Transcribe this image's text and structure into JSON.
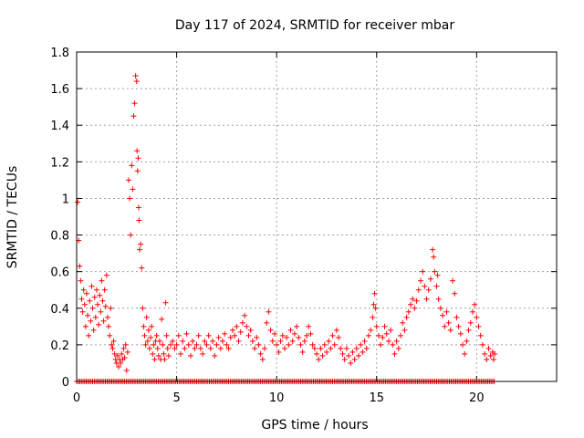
{
  "chart_data": {
    "type": "scatter",
    "title": "Day 117 of 2024, SRMTID for receiver mbar",
    "xlabel": "GPS time / hours",
    "ylabel": "SRMTID / TECUs",
    "xlim": [
      0,
      24
    ],
    "ylim": [
      0,
      1.8
    ],
    "xticks": [
      0,
      5,
      10,
      15,
      20
    ],
    "xtick_labels": [
      "0",
      "5",
      "10",
      "15",
      "20"
    ],
    "yticks": [
      0,
      0.2,
      0.4,
      0.6,
      0.8,
      1.0,
      1.2,
      1.4,
      1.6,
      1.8
    ],
    "ytick_labels": [
      "0",
      "0.2",
      "0.4",
      "0.6",
      "0.8",
      "1",
      "1.2",
      "1.4",
      "1.6",
      "1.8"
    ],
    "grid": true,
    "marker": "+",
    "series": [
      {
        "name": "SRMTID",
        "color": "#ff0000",
        "points": [
          [
            0.05,
            0.98
          ],
          [
            0.1,
            0.77
          ],
          [
            0.15,
            0.63
          ],
          [
            0.2,
            0.55
          ],
          [
            0.25,
            0.45
          ],
          [
            0.3,
            0.38
          ],
          [
            0.35,
            0.5
          ],
          [
            0.4,
            0.42
          ],
          [
            0.45,
            0.3
          ],
          [
            0.5,
            0.48
          ],
          [
            0.55,
            0.36
          ],
          [
            0.6,
            0.25
          ],
          [
            0.65,
            0.44
          ],
          [
            0.7,
            0.33
          ],
          [
            0.75,
            0.52
          ],
          [
            0.8,
            0.4
          ],
          [
            0.85,
            0.28
          ],
          [
            0.9,
            0.46
          ],
          [
            0.95,
            0.35
          ],
          [
            1.0,
            0.5
          ],
          [
            1.05,
            0.42
          ],
          [
            1.1,
            0.31
          ],
          [
            1.15,
            0.47
          ],
          [
            1.2,
            0.38
          ],
          [
            1.25,
            0.55
          ],
          [
            1.3,
            0.44
          ],
          [
            1.35,
            0.33
          ],
          [
            1.4,
            0.5
          ],
          [
            1.45,
            0.41
          ],
          [
            1.5,
            0.58
          ],
          [
            1.55,
            0.35
          ],
          [
            1.6,
            0.3
          ],
          [
            1.65,
            0.25
          ],
          [
            1.7,
            0.4
          ],
          [
            1.75,
            0.2
          ],
          [
            1.8,
            0.18
          ],
          [
            1.85,
            0.22
          ],
          [
            1.9,
            0.15
          ],
          [
            1.95,
            0.12
          ],
          [
            2.0,
            0.1
          ],
          [
            2.05,
            0.14
          ],
          [
            2.1,
            0.08
          ],
          [
            2.15,
            0.12
          ],
          [
            2.2,
            0.1
          ],
          [
            2.25,
            0.15
          ],
          [
            2.3,
            0.12
          ],
          [
            2.35,
            0.18
          ],
          [
            2.4,
            0.13
          ],
          [
            2.45,
            0.2
          ],
          [
            2.5,
            0.06
          ],
          [
            2.55,
            0.16
          ],
          [
            2.6,
            1.1
          ],
          [
            2.65,
            1.0
          ],
          [
            2.7,
            0.8
          ],
          [
            2.75,
            1.18
          ],
          [
            2.8,
            1.05
          ],
          [
            2.85,
            1.45
          ],
          [
            2.9,
            1.52
          ],
          [
            2.95,
            1.67
          ],
          [
            3.0,
            1.64
          ],
          [
            3.02,
            1.26
          ],
          [
            3.05,
            1.15
          ],
          [
            3.08,
            1.22
          ],
          [
            3.1,
            0.95
          ],
          [
            3.12,
            0.88
          ],
          [
            3.15,
            0.72
          ],
          [
            3.2,
            0.75
          ],
          [
            3.25,
            0.62
          ],
          [
            3.3,
            0.4
          ],
          [
            3.35,
            0.3
          ],
          [
            3.4,
            0.25
          ],
          [
            3.45,
            0.2
          ],
          [
            3.5,
            0.35
          ],
          [
            3.55,
            0.22
          ],
          [
            3.6,
            0.28
          ],
          [
            3.65,
            0.18
          ],
          [
            3.7,
            0.24
          ],
          [
            3.75,
            0.3
          ],
          [
            3.8,
            0.15
          ],
          [
            3.85,
            0.2
          ],
          [
            3.9,
            0.12
          ],
          [
            3.95,
            0.22
          ],
          [
            4.0,
            0.25
          ],
          [
            4.05,
            0.18
          ],
          [
            4.1,
            0.14
          ],
          [
            4.15,
            0.22
          ],
          [
            4.2,
            0.12
          ],
          [
            4.25,
            0.34
          ],
          [
            4.3,
            0.2
          ],
          [
            4.35,
            0.15
          ],
          [
            4.4,
            0.12
          ],
          [
            4.45,
            0.43
          ],
          [
            4.5,
            0.25
          ],
          [
            4.55,
            0.18
          ],
          [
            4.6,
            0.14
          ],
          [
            4.7,
            0.2
          ],
          [
            4.8,
            0.22
          ],
          [
            4.9,
            0.18
          ],
          [
            5.0,
            0.2
          ],
          [
            5.1,
            0.25
          ],
          [
            5.2,
            0.15
          ],
          [
            5.3,
            0.22
          ],
          [
            5.4,
            0.18
          ],
          [
            5.5,
            0.26
          ],
          [
            5.6,
            0.2
          ],
          [
            5.7,
            0.14
          ],
          [
            5.8,
            0.22
          ],
          [
            5.9,
            0.18
          ],
          [
            6.0,
            0.2
          ],
          [
            6.1,
            0.25
          ],
          [
            6.2,
            0.18
          ],
          [
            6.3,
            0.15
          ],
          [
            6.4,
            0.22
          ],
          [
            6.5,
            0.2
          ],
          [
            6.6,
            0.25
          ],
          [
            6.7,
            0.18
          ],
          [
            6.8,
            0.22
          ],
          [
            6.9,
            0.14
          ],
          [
            7.0,
            0.2
          ],
          [
            7.1,
            0.24
          ],
          [
            7.2,
            0.18
          ],
          [
            7.3,
            0.22
          ],
          [
            7.4,
            0.26
          ],
          [
            7.5,
            0.2
          ],
          [
            7.6,
            0.18
          ],
          [
            7.7,
            0.24
          ],
          [
            7.8,
            0.28
          ],
          [
            7.9,
            0.25
          ],
          [
            8.0,
            0.3
          ],
          [
            8.1,
            0.22
          ],
          [
            8.2,
            0.27
          ],
          [
            8.3,
            0.32
          ],
          [
            8.4,
            0.36
          ],
          [
            8.5,
            0.3
          ],
          [
            8.6,
            0.25
          ],
          [
            8.7,
            0.28
          ],
          [
            8.8,
            0.22
          ],
          [
            8.9,
            0.18
          ],
          [
            9.0,
            0.24
          ],
          [
            9.1,
            0.2
          ],
          [
            9.2,
            0.15
          ],
          [
            9.3,
            0.12
          ],
          [
            9.4,
            0.18
          ],
          [
            9.5,
            0.32
          ],
          [
            9.6,
            0.38
          ],
          [
            9.7,
            0.28
          ],
          [
            9.8,
            0.22
          ],
          [
            9.9,
            0.26
          ],
          [
            10.0,
            0.2
          ],
          [
            10.1,
            0.16
          ],
          [
            10.2,
            0.22
          ],
          [
            10.3,
            0.25
          ],
          [
            10.4,
            0.18
          ],
          [
            10.5,
            0.24
          ],
          [
            10.6,
            0.2
          ],
          [
            10.7,
            0.28
          ],
          [
            10.8,
            0.22
          ],
          [
            10.9,
            0.26
          ],
          [
            11.0,
            0.3
          ],
          [
            11.1,
            0.24
          ],
          [
            11.2,
            0.2
          ],
          [
            11.3,
            0.16
          ],
          [
            11.4,
            0.22
          ],
          [
            11.5,
            0.25
          ],
          [
            11.6,
            0.3
          ],
          [
            11.7,
            0.26
          ],
          [
            11.8,
            0.2
          ],
          [
            11.9,
            0.18
          ],
          [
            12.0,
            0.15
          ],
          [
            12.1,
            0.12
          ],
          [
            12.2,
            0.18
          ],
          [
            12.3,
            0.14
          ],
          [
            12.4,
            0.2
          ],
          [
            12.5,
            0.16
          ],
          [
            12.6,
            0.22
          ],
          [
            12.7,
            0.18
          ],
          [
            12.8,
            0.25
          ],
          [
            12.9,
            0.2
          ],
          [
            13.0,
            0.28
          ],
          [
            13.1,
            0.24
          ],
          [
            13.2,
            0.18
          ],
          [
            13.3,
            0.15
          ],
          [
            13.4,
            0.12
          ],
          [
            13.5,
            0.18
          ],
          [
            13.6,
            0.14
          ],
          [
            13.7,
            0.1
          ],
          [
            13.8,
            0.16
          ],
          [
            13.9,
            0.12
          ],
          [
            14.0,
            0.18
          ],
          [
            14.1,
            0.14
          ],
          [
            14.2,
            0.2
          ],
          [
            14.3,
            0.16
          ],
          [
            14.4,
            0.22
          ],
          [
            14.5,
            0.18
          ],
          [
            14.6,
            0.25
          ],
          [
            14.7,
            0.28
          ],
          [
            14.8,
            0.35
          ],
          [
            14.85,
            0.42
          ],
          [
            14.9,
            0.48
          ],
          [
            14.95,
            0.4
          ],
          [
            15.0,
            0.3
          ],
          [
            15.1,
            0.25
          ],
          [
            15.2,
            0.2
          ],
          [
            15.3,
            0.24
          ],
          [
            15.4,
            0.3
          ],
          [
            15.5,
            0.26
          ],
          [
            15.6,
            0.22
          ],
          [
            15.7,
            0.28
          ],
          [
            15.8,
            0.2
          ],
          [
            15.9,
            0.15
          ],
          [
            16.0,
            0.22
          ],
          [
            16.1,
            0.18
          ],
          [
            16.2,
            0.25
          ],
          [
            16.3,
            0.32
          ],
          [
            16.4,
            0.28
          ],
          [
            16.5,
            0.35
          ],
          [
            16.6,
            0.38
          ],
          [
            16.7,
            0.42
          ],
          [
            16.8,
            0.45
          ],
          [
            16.9,
            0.4
          ],
          [
            17.0,
            0.44
          ],
          [
            17.1,
            0.5
          ],
          [
            17.2,
            0.55
          ],
          [
            17.3,
            0.6
          ],
          [
            17.4,
            0.52
          ],
          [
            17.5,
            0.45
          ],
          [
            17.6,
            0.5
          ],
          [
            17.7,
            0.56
          ],
          [
            17.8,
            0.72
          ],
          [
            17.85,
            0.68
          ],
          [
            17.9,
            0.6
          ],
          [
            18.0,
            0.52
          ],
          [
            18.05,
            0.58
          ],
          [
            18.1,
            0.45
          ],
          [
            18.2,
            0.4
          ],
          [
            18.3,
            0.36
          ],
          [
            18.4,
            0.3
          ],
          [
            18.5,
            0.38
          ],
          [
            18.6,
            0.32
          ],
          [
            18.7,
            0.28
          ],
          [
            18.8,
            0.55
          ],
          [
            18.9,
            0.48
          ],
          [
            19.0,
            0.35
          ],
          [
            19.1,
            0.3
          ],
          [
            19.2,
            0.26
          ],
          [
            19.3,
            0.2
          ],
          [
            19.4,
            0.15
          ],
          [
            19.5,
            0.22
          ],
          [
            19.6,
            0.28
          ],
          [
            19.7,
            0.32
          ],
          [
            19.8,
            0.38
          ],
          [
            19.9,
            0.42
          ],
          [
            20.0,
            0.35
          ],
          [
            20.1,
            0.3
          ],
          [
            20.2,
            0.25
          ],
          [
            20.3,
            0.2
          ],
          [
            20.4,
            0.15
          ],
          [
            20.5,
            0.12
          ],
          [
            20.6,
            0.18
          ],
          [
            20.7,
            0.14
          ],
          [
            20.8,
            0.16
          ],
          [
            20.85,
            0.12
          ],
          [
            20.9,
            0.15
          ]
        ]
      },
      {
        "name": "SRMTID (zero)",
        "color": "#ff0000",
        "x_range_hours": [
          0,
          20.9
        ],
        "y": 0,
        "note": "dense row of points at 0 along the x-axis"
      }
    ]
  }
}
